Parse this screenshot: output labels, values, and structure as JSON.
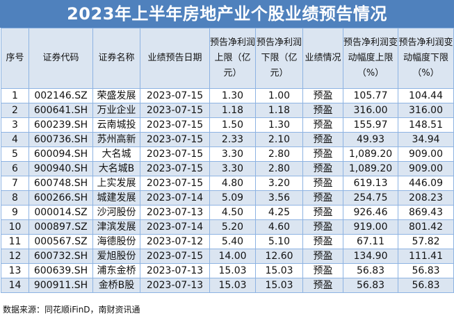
{
  "title": "2023年上半年房地产业个股业绩预告情况",
  "headers": {
    "seq": "序号",
    "code": "证券代码",
    "name": "证券名称",
    "date": "业绩预告日期",
    "upper": "预告净利润上限（亿元）",
    "lower": "预告净利润下限（亿元）",
    "status": "业绩情况",
    "chg_upper": "预告净利润变动幅度上限（%）",
    "chg_lower": "预告净利润变动幅度下限（%）"
  },
  "rows": [
    {
      "seq": "1",
      "code": "002146.SZ",
      "name": "荣盛发展",
      "date": "2023-07-15",
      "upper": "1.30",
      "lower": "1.00",
      "status": "预盈",
      "chg_upper": "105.77",
      "chg_lower": "104.44"
    },
    {
      "seq": "2",
      "code": "600641.SH",
      "name": "万业企业",
      "date": "2023-07-15",
      "upper": "1.18",
      "lower": "1.18",
      "status": "预盈",
      "chg_upper": "316.00",
      "chg_lower": "316.00"
    },
    {
      "seq": "3",
      "code": "600239.SH",
      "name": "云南城投",
      "date": "2023-07-15",
      "upper": "1.50",
      "lower": "1.30",
      "status": "预盈",
      "chg_upper": "155.97",
      "chg_lower": "148.51"
    },
    {
      "seq": "4",
      "code": "600736.SH",
      "name": "苏州高新",
      "date": "2023-07-15",
      "upper": "2.33",
      "lower": "2.10",
      "status": "预盈",
      "chg_upper": "49.93",
      "chg_lower": "34.94"
    },
    {
      "seq": "5",
      "code": "600094.SH",
      "name": "大名城",
      "date": "2023-07-15",
      "upper": "3.30",
      "lower": "2.80",
      "status": "预盈",
      "chg_upper": "1,089.20",
      "chg_lower": "909.00"
    },
    {
      "seq": "6",
      "code": "900940.SH",
      "name": "大名城B",
      "date": "2023-07-15",
      "upper": "3.30",
      "lower": "2.80",
      "status": "预盈",
      "chg_upper": "1,089.20",
      "chg_lower": "909.00"
    },
    {
      "seq": "7",
      "code": "600748.SH",
      "name": "上实发展",
      "date": "2023-07-15",
      "upper": "4.80",
      "lower": "3.20",
      "status": "预盈",
      "chg_upper": "619.13",
      "chg_lower": "446.09"
    },
    {
      "seq": "8",
      "code": "600266.SH",
      "name": "城建发展",
      "date": "2023-07-14",
      "upper": "5.09",
      "lower": "3.56",
      "status": "预盈",
      "chg_upper": "254.75",
      "chg_lower": "208.23"
    },
    {
      "seq": "9",
      "code": "000014.SZ",
      "name": "沙河股份",
      "date": "2023-07-13",
      "upper": "4.50",
      "lower": "4.25",
      "status": "预盈",
      "chg_upper": "926.46",
      "chg_lower": "869.43"
    },
    {
      "seq": "10",
      "code": "000897.SZ",
      "name": "津滨发展",
      "date": "2023-07-14",
      "upper": "5.20",
      "lower": "4.60",
      "status": "预盈",
      "chg_upper": "919.00",
      "chg_lower": "801.42"
    },
    {
      "seq": "11",
      "code": "000567.SZ",
      "name": "海德股份",
      "date": "2023-07-12",
      "upper": "5.40",
      "lower": "5.10",
      "status": "预盈",
      "chg_upper": "67.11",
      "chg_lower": "57.82"
    },
    {
      "seq": "12",
      "code": "600732.SH",
      "name": "爱旭股份",
      "date": "2023-07-15",
      "upper": "14.00",
      "lower": "12.60",
      "status": "预盈",
      "chg_upper": "134.90",
      "chg_lower": "111.41"
    },
    {
      "seq": "13",
      "code": "600639.SH",
      "name": "浦东金桥",
      "date": "2023-07-13",
      "upper": "15.03",
      "lower": "15.03",
      "status": "预盈",
      "chg_upper": "56.83",
      "chg_lower": "56.83"
    },
    {
      "seq": "14",
      "code": "900911.SH",
      "name": "金桥B股",
      "date": "2023-07-13",
      "upper": "15.03",
      "lower": "15.03",
      "status": "预盈",
      "chg_upper": "56.83",
      "chg_lower": "56.83"
    }
  ],
  "source": "数据来源：同花顺iFinD，南财资讯通"
}
